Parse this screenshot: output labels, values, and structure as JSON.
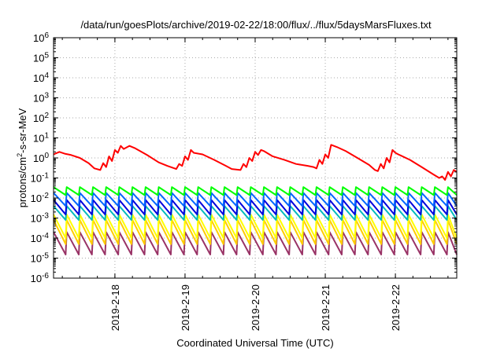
{
  "chart_data": {
    "type": "line",
    "title": "/data/run/goesPlots/archive/2019-02-22/18:00/flux/../flux/5daysMarsFluxes.txt",
    "xlabel": "Coordinated Universal Time (UTC)",
    "ylabel": "protons/cm2-s-sr-MeV",
    "ylabel_parts": {
      "pre": "protons/cm",
      "sup": "2",
      "post": "-s-sr-MeV"
    },
    "yscale": "log",
    "ylim": [
      1e-06,
      1000000.0
    ],
    "ytick_exponents": [
      -6,
      -5,
      -4,
      -3,
      -2,
      -1,
      0,
      1,
      2,
      3,
      4,
      5,
      6
    ],
    "ytick_base": "10",
    "xlim": [
      "2019-02-17T03:00",
      "2019-02-22T21:00"
    ],
    "xticks": [
      {
        "t": "2019-02-18T00:00",
        "label": "2019-2-18"
      },
      {
        "t": "2019-02-19T00:00",
        "label": "2019-2-19"
      },
      {
        "t": "2019-02-20T00:00",
        "label": "2019-2-20"
      },
      {
        "t": "2019-02-21T00:00",
        "label": "2019-2-21"
      },
      {
        "t": "2019-02-22T00:00",
        "label": "2019-2-22"
      }
    ],
    "grid": true,
    "series": [
      {
        "color": "#ff0000",
        "points": [
          [
            "2019-02-17T03:00",
            1.5
          ],
          [
            "2019-02-17T05:00",
            2.0
          ],
          [
            "2019-02-17T07:00",
            1.6
          ],
          [
            "2019-02-17T09:00",
            1.4
          ],
          [
            "2019-02-17T12:00",
            1.0
          ],
          [
            "2019-02-17T15:00",
            0.55
          ],
          [
            "2019-02-17T17:00",
            0.3
          ],
          [
            "2019-02-17T19:00",
            0.25
          ],
          [
            "2019-02-17T20:00",
            0.55
          ],
          [
            "2019-02-17T21:00",
            0.35
          ],
          [
            "2019-02-17T22:00",
            1.2
          ],
          [
            "2019-02-17T23:00",
            0.7
          ],
          [
            "2019-02-18T00:00",
            2.5
          ],
          [
            "2019-02-18T01:00",
            1.8
          ],
          [
            "2019-02-18T02:00",
            4.0
          ],
          [
            "2019-02-18T03:00",
            2.8
          ],
          [
            "2019-02-18T05:00",
            4.0
          ],
          [
            "2019-02-18T07:00",
            3.0
          ],
          [
            "2019-02-18T11:00",
            1.4
          ],
          [
            "2019-02-18T15:00",
            0.6
          ],
          [
            "2019-02-18T18:00",
            0.4
          ],
          [
            "2019-02-18T21:00",
            0.28
          ],
          [
            "2019-02-18T22:00",
            0.5
          ],
          [
            "2019-02-18T23:00",
            0.4
          ],
          [
            "2019-02-19T00:00",
            1.2
          ],
          [
            "2019-02-19T01:00",
            0.8
          ],
          [
            "2019-02-19T02:00",
            2.5
          ],
          [
            "2019-02-19T03:00",
            1.8
          ],
          [
            "2019-02-19T06:00",
            1.5
          ],
          [
            "2019-02-19T10:00",
            0.8
          ],
          [
            "2019-02-19T14:00",
            0.4
          ],
          [
            "2019-02-19T16:00",
            0.28
          ],
          [
            "2019-02-19T19:00",
            0.25
          ],
          [
            "2019-02-19T20:00",
            0.5
          ],
          [
            "2019-02-19T21:00",
            0.35
          ],
          [
            "2019-02-19T22:00",
            1.0
          ],
          [
            "2019-02-19T23:00",
            0.7
          ],
          [
            "2019-02-20T00:00",
            2.0
          ],
          [
            "2019-02-20T01:00",
            1.4
          ],
          [
            "2019-02-20T02:00",
            2.5
          ],
          [
            "2019-02-20T03:00",
            2.2
          ],
          [
            "2019-02-20T06:00",
            1.2
          ],
          [
            "2019-02-20T10:00",
            0.8
          ],
          [
            "2019-02-20T14:00",
            0.5
          ],
          [
            "2019-02-20T18:00",
            0.4
          ],
          [
            "2019-02-20T20:00",
            0.35
          ],
          [
            "2019-02-20T21:00",
            0.3
          ],
          [
            "2019-02-20T22:00",
            0.8
          ],
          [
            "2019-02-20T23:00",
            0.5
          ],
          [
            "2019-02-21T00:00",
            1.5
          ],
          [
            "2019-02-21T01:00",
            1.0
          ],
          [
            "2019-02-21T02:00",
            4.5
          ],
          [
            "2019-02-21T04:00",
            3.5
          ],
          [
            "2019-02-21T07:00",
            2.2
          ],
          [
            "2019-02-21T11:00",
            1.0
          ],
          [
            "2019-02-21T15:00",
            0.45
          ],
          [
            "2019-02-21T17:00",
            0.25
          ],
          [
            "2019-02-21T18:00",
            0.22
          ],
          [
            "2019-02-21T19:00",
            0.5
          ],
          [
            "2019-02-21T20:00",
            0.3
          ],
          [
            "2019-02-21T21:00",
            1.0
          ],
          [
            "2019-02-21T22:00",
            0.6
          ],
          [
            "2019-02-21T23:00",
            2.5
          ],
          [
            "2019-02-22T00:00",
            1.8
          ],
          [
            "2019-02-22T01:00",
            1.5
          ],
          [
            "2019-02-22T05:00",
            0.8
          ],
          [
            "2019-02-22T09:00",
            0.35
          ],
          [
            "2019-02-22T13:00",
            0.15
          ],
          [
            "2019-02-22T15:00",
            0.1
          ],
          [
            "2019-02-22T16:00",
            0.12
          ],
          [
            "2019-02-22T17:00",
            0.08
          ],
          [
            "2019-02-22T18:00",
            0.2
          ],
          [
            "2019-02-22T19:00",
            0.12
          ],
          [
            "2019-02-22T20:00",
            0.25
          ],
          [
            "2019-02-22T21:00",
            0.2
          ]
        ]
      },
      {
        "color": "#00ff00",
        "sawtooth": {
          "period_hours": 4.5,
          "high": 0.035,
          "low": 0.014
        }
      },
      {
        "color": "#0066ff",
        "sawtooth": {
          "period_hours": 4.5,
          "high": 0.018,
          "low": 0.004
        }
      },
      {
        "color": "#0000dd",
        "sawtooth": {
          "period_hours": 4.5,
          "high": 0.008,
          "low": 0.0015
        }
      },
      {
        "color": "#00bbbb",
        "sawtooth": {
          "period_hours": 4.5,
          "high": 0.004,
          "low": 0.0008
        }
      },
      {
        "color": "#ffff00",
        "sawtooth": {
          "period_hours": 4.5,
          "high": 0.0015,
          "low": 0.0001
        }
      },
      {
        "color": "#ffcc00",
        "sawtooth": {
          "period_hours": 4.5,
          "high": 0.0008,
          "low": 5e-05
        }
      },
      {
        "color": "#993366",
        "sawtooth": {
          "period_hours": 4.5,
          "high": 0.0002,
          "low": 1.5e-05
        }
      }
    ]
  }
}
